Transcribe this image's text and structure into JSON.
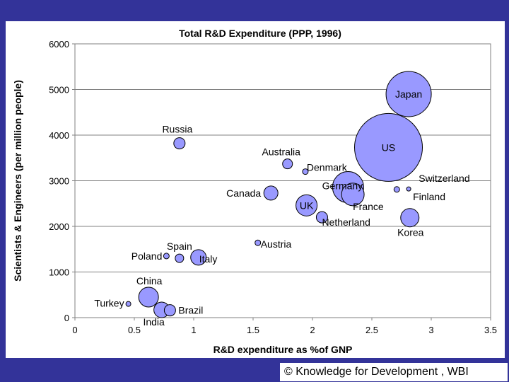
{
  "chart_data": {
    "type": "scatter",
    "subtype": "bubble",
    "title": "Total R&D Expenditure (PPP, 1996)",
    "xlabel": "R&D expenditure as %of GNP",
    "ylabel": "Scientists & Engineers (per million people)",
    "xlim": [
      0,
      3.5
    ],
    "ylim": [
      0,
      6000
    ],
    "xticks": [
      "0",
      "0.5",
      "1",
      "1.5",
      "2",
      "2.5",
      "3",
      "3.5"
    ],
    "yticks": [
      "0",
      "1000",
      "2000",
      "3000",
      "4000",
      "5000",
      "6000"
    ],
    "grid": true,
    "points": [
      {
        "label": "Turkey",
        "x": 0.45,
        "y": 300,
        "r": 3.5
      },
      {
        "label": "China",
        "x": 0.62,
        "y": 450,
        "r": 14
      },
      {
        "label": "India",
        "x": 0.73,
        "y": 170,
        "r": 11
      },
      {
        "label": "Brazil",
        "x": 0.8,
        "y": 160,
        "r": 8
      },
      {
        "label": "Poland",
        "x": 0.77,
        "y": 1350,
        "r": 4
      },
      {
        "label": "Spain",
        "x": 0.88,
        "y": 1300,
        "r": 6
      },
      {
        "label": "Italy",
        "x": 1.04,
        "y": 1320,
        "r": 11
      },
      {
        "label": "Russia",
        "x": 0.88,
        "y": 3820,
        "r": 8
      },
      {
        "label": "Austria",
        "x": 1.54,
        "y": 1640,
        "r": 4
      },
      {
        "label": "Canada",
        "x": 1.65,
        "y": 2730,
        "r": 10
      },
      {
        "label": "Australia",
        "x": 1.79,
        "y": 3370,
        "r": 7
      },
      {
        "label": "Denmark",
        "x": 1.94,
        "y": 3200,
        "r": 4
      },
      {
        "label": "UK",
        "x": 1.95,
        "y": 2460,
        "r": 15
      },
      {
        "label": "Netherland",
        "x": 2.08,
        "y": 2200,
        "r": 8
      },
      {
        "label": "Germany",
        "x": 2.3,
        "y": 2860,
        "r": 22
      },
      {
        "label": "France",
        "x": 2.34,
        "y": 2700,
        "r": 16
      },
      {
        "label": "US",
        "x": 2.64,
        "y": 3730,
        "r": 48
      },
      {
        "label": "Switzerland",
        "x": 2.71,
        "y": 2810,
        "r": 4
      },
      {
        "label": "Japan",
        "x": 2.81,
        "y": 4900,
        "r": 32
      },
      {
        "label": "Finland",
        "x": 2.81,
        "y": 2820,
        "r": 3
      },
      {
        "label": "Korea",
        "x": 2.82,
        "y": 2190,
        "r": 13
      }
    ],
    "bubble_color": "#9999ff"
  },
  "footer": {
    "copyright": "© Knowledge for Development , WBI"
  }
}
